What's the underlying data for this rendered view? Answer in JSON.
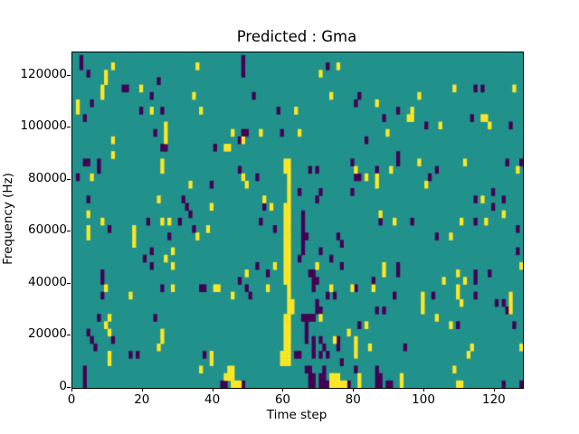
{
  "figure": {
    "title": "Predicted : Gma",
    "xlabel": "Time step",
    "ylabel": "Frequency (Hz)"
  },
  "chart_data": {
    "type": "heatmap",
    "title": "Predicted : Gma",
    "xlabel": "Time step",
    "ylabel": "Frequency (Hz)",
    "xlim": [
      0,
      128
    ],
    "ylim": [
      0,
      129000
    ],
    "x_ticks": [
      0,
      20,
      40,
      60,
      80,
      100,
      120
    ],
    "y_ticks": [
      0,
      20000,
      40000,
      60000,
      80000,
      100000,
      120000
    ],
    "grid": {
      "cols": 128,
      "rows": 45,
      "rows_visible": 45.35
    },
    "legend": "none",
    "colors": {
      "background_value": "#21918c",
      "high_value": "#fde725",
      "low_value": "#440154",
      "spine": "#000000",
      "text": "#000000"
    },
    "cells": {
      "yellow": [
        [
          11,
          43
        ],
        [
          35,
          43
        ],
        [
          75,
          43
        ],
        [
          70,
          42
        ],
        [
          9,
          41
        ],
        [
          9,
          42
        ],
        [
          8,
          39
        ],
        [
          8,
          40
        ],
        [
          19,
          40
        ],
        [
          34,
          39
        ],
        [
          73,
          39
        ],
        [
          98,
          39
        ],
        [
          108,
          40
        ],
        [
          125,
          40
        ],
        [
          1,
          37
        ],
        [
          1,
          38
        ],
        [
          22,
          37
        ],
        [
          36,
          37
        ],
        [
          63,
          37
        ],
        [
          86,
          38
        ],
        [
          86,
          27
        ],
        [
          96,
          36
        ],
        [
          96,
          37
        ],
        [
          95,
          36
        ],
        [
          116,
          36
        ],
        [
          117,
          36
        ],
        [
          118,
          35
        ],
        [
          104,
          35
        ],
        [
          26,
          33
        ],
        [
          26,
          34
        ],
        [
          26,
          35
        ],
        [
          11,
          33
        ],
        [
          45,
          34
        ],
        [
          53,
          34
        ],
        [
          64,
          34
        ],
        [
          48,
          33
        ],
        [
          89,
          34
        ],
        [
          11,
          31
        ],
        [
          43,
          32
        ],
        [
          44,
          32
        ],
        [
          25,
          29
        ],
        [
          25,
          30
        ],
        [
          90,
          29
        ],
        [
          126,
          29
        ],
        [
          80,
          29
        ],
        [
          98,
          30
        ],
        [
          111,
          30
        ],
        [
          5,
          28
        ],
        [
          48,
          28
        ],
        [
          83,
          28
        ],
        [
          86,
          28
        ],
        [
          33,
          27
        ],
        [
          49,
          27
        ],
        [
          100,
          27
        ],
        [
          24,
          25
        ],
        [
          54,
          25
        ],
        [
          116,
          25
        ],
        [
          39,
          24
        ],
        [
          56,
          24
        ],
        [
          122,
          23
        ],
        [
          87,
          23
        ],
        [
          4,
          23
        ],
        [
          8,
          22
        ],
        [
          25,
          22
        ],
        [
          27,
          22
        ],
        [
          91,
          22
        ],
        [
          110,
          22
        ],
        [
          117,
          22
        ],
        [
          4,
          20
        ],
        [
          4,
          21
        ],
        [
          17,
          19
        ],
        [
          17,
          20
        ],
        [
          17,
          21
        ],
        [
          35,
          20
        ],
        [
          38,
          21
        ],
        [
          107,
          20
        ],
        [
          28,
          18
        ],
        [
          26,
          17
        ],
        [
          28,
          16
        ],
        [
          69,
          16
        ],
        [
          57,
          16
        ],
        [
          88,
          15
        ],
        [
          88,
          16
        ],
        [
          109,
          15
        ],
        [
          127,
          16
        ],
        [
          49,
          15
        ],
        [
          9,
          13
        ],
        [
          28,
          13
        ],
        [
          40,
          13
        ],
        [
          41,
          13
        ],
        [
          55,
          13
        ],
        [
          73,
          13
        ],
        [
          79,
          13
        ],
        [
          85,
          13
        ],
        [
          45,
          12
        ],
        [
          16,
          12
        ],
        [
          105,
          14
        ],
        [
          111,
          14
        ],
        [
          109,
          12
        ],
        [
          109,
          13
        ],
        [
          110,
          11
        ],
        [
          99,
          10
        ],
        [
          99,
          11
        ],
        [
          99,
          12
        ],
        [
          124,
          10
        ],
        [
          124,
          11
        ],
        [
          124,
          12
        ],
        [
          10,
          9
        ],
        [
          9,
          8
        ],
        [
          10,
          7
        ],
        [
          70,
          9
        ],
        [
          78,
          7
        ],
        [
          83,
          8
        ],
        [
          103,
          9
        ],
        [
          107,
          8
        ],
        [
          25,
          6
        ],
        [
          25,
          7
        ],
        [
          24,
          5
        ],
        [
          74,
          6
        ],
        [
          80,
          4
        ],
        [
          80,
          5
        ],
        [
          80,
          6
        ],
        [
          84,
          5
        ],
        [
          113,
          5
        ],
        [
          127,
          5
        ],
        [
          10,
          3
        ],
        [
          10,
          4
        ],
        [
          39,
          3
        ],
        [
          39,
          4
        ],
        [
          36,
          2
        ],
        [
          112,
          4
        ],
        [
          108,
          2
        ],
        [
          43,
          1
        ],
        [
          44,
          1
        ],
        [
          45,
          1
        ],
        [
          44,
          2
        ],
        [
          45,
          2
        ],
        [
          45,
          0
        ],
        [
          46,
          0
        ],
        [
          47,
          0
        ],
        [
          73,
          0
        ],
        [
          74,
          0
        ],
        [
          75,
          0
        ],
        [
          76,
          0
        ],
        [
          77,
          0
        ],
        [
          73,
          1
        ],
        [
          74,
          1
        ],
        [
          75,
          1
        ],
        [
          81,
          0
        ],
        [
          81,
          1
        ],
        [
          93,
          0
        ],
        [
          93,
          1
        ],
        [
          109,
          0
        ],
        [
          110,
          0
        ],
        [
          59,
          3
        ],
        [
          59,
          4
        ],
        [
          60,
          3
        ],
        [
          60,
          4
        ],
        [
          60,
          5
        ],
        [
          60,
          6
        ],
        [
          60,
          7
        ],
        [
          60,
          8
        ],
        [
          60,
          9
        ],
        [
          60,
          14
        ],
        [
          60,
          15
        ],
        [
          60,
          16
        ],
        [
          60,
          17
        ],
        [
          60,
          18
        ],
        [
          60,
          19
        ],
        [
          60,
          20
        ],
        [
          60,
          21
        ],
        [
          60,
          22
        ],
        [
          60,
          23
        ],
        [
          60,
          24
        ],
        [
          60,
          29
        ],
        [
          60,
          30
        ],
        [
          61,
          3
        ],
        [
          61,
          4
        ],
        [
          61,
          5
        ],
        [
          61,
          6
        ],
        [
          61,
          7
        ],
        [
          61,
          8
        ],
        [
          61,
          9
        ],
        [
          61,
          10
        ],
        [
          61,
          11
        ],
        [
          61,
          12
        ],
        [
          61,
          13
        ],
        [
          61,
          14
        ],
        [
          61,
          15
        ],
        [
          61,
          16
        ],
        [
          61,
          17
        ],
        [
          61,
          18
        ],
        [
          61,
          19
        ],
        [
          61,
          20
        ],
        [
          61,
          21
        ],
        [
          61,
          22
        ],
        [
          61,
          23
        ],
        [
          61,
          24
        ],
        [
          61,
          25
        ],
        [
          61,
          26
        ],
        [
          61,
          27
        ],
        [
          61,
          28
        ],
        [
          61,
          29
        ],
        [
          61,
          30
        ],
        [
          62,
          10
        ],
        [
          62,
          11
        ]
      ],
      "dark": [
        [
          2,
          43
        ],
        [
          2,
          44
        ],
        [
          48,
          42
        ],
        [
          48,
          43
        ],
        [
          48,
          44
        ],
        [
          72,
          43
        ],
        [
          4,
          42
        ],
        [
          24,
          41
        ],
        [
          14,
          40
        ],
        [
          15,
          40
        ],
        [
          114,
          40
        ],
        [
          116,
          40
        ],
        [
          22,
          39
        ],
        [
          51,
          39
        ],
        [
          81,
          39
        ],
        [
          5,
          38
        ],
        [
          80,
          38
        ],
        [
          19,
          37
        ],
        [
          25,
          37
        ],
        [
          58,
          37
        ],
        [
          92,
          37
        ],
        [
          113,
          36
        ],
        [
          88,
          36
        ],
        [
          3,
          36
        ],
        [
          23,
          34
        ],
        [
          48,
          34
        ],
        [
          49,
          34
        ],
        [
          59,
          34
        ],
        [
          100,
          35
        ],
        [
          124,
          35
        ],
        [
          47,
          33
        ],
        [
          83,
          33
        ],
        [
          26,
          32
        ],
        [
          40,
          32
        ],
        [
          25,
          32
        ],
        [
          3,
          30
        ],
        [
          4,
          30
        ],
        [
          7,
          30
        ],
        [
          7,
          29
        ],
        [
          47,
          29
        ],
        [
          67,
          29
        ],
        [
          69,
          29
        ],
        [
          79,
          30
        ],
        [
          86,
          29
        ],
        [
          103,
          29
        ],
        [
          92,
          30
        ],
        [
          92,
          31
        ],
        [
          123,
          30
        ],
        [
          127,
          30
        ],
        [
          1,
          28
        ],
        [
          52,
          28
        ],
        [
          80,
          28
        ],
        [
          81,
          28
        ],
        [
          101,
          28
        ],
        [
          39,
          27
        ],
        [
          4,
          25
        ],
        [
          31,
          25
        ],
        [
          69,
          25
        ],
        [
          114,
          25
        ],
        [
          122,
          25
        ],
        [
          64,
          26
        ],
        [
          70,
          26
        ],
        [
          79,
          26
        ],
        [
          119,
          26
        ],
        [
          32,
          24
        ],
        [
          54,
          24
        ],
        [
          119,
          24
        ],
        [
          33,
          23
        ],
        [
          21,
          22
        ],
        [
          30,
          22
        ],
        [
          53,
          22
        ],
        [
          87,
          22
        ],
        [
          96,
          22
        ],
        [
          114,
          22
        ],
        [
          34,
          21
        ],
        [
          10,
          21
        ],
        [
          57,
          21
        ],
        [
          126,
          21
        ],
        [
          27,
          20
        ],
        [
          65,
          18
        ],
        [
          65,
          19
        ],
        [
          65,
          20
        ],
        [
          65,
          21
        ],
        [
          65,
          22
        ],
        [
          65,
          23
        ],
        [
          66,
          20
        ],
        [
          70,
          18
        ],
        [
          75,
          20
        ],
        [
          76,
          19
        ],
        [
          103,
          20
        ],
        [
          126,
          18
        ],
        [
          22,
          18
        ],
        [
          20,
          17
        ],
        [
          64,
          17
        ],
        [
          73,
          17
        ],
        [
          22,
          16
        ],
        [
          76,
          16
        ],
        [
          52,
          16
        ],
        [
          8,
          15
        ],
        [
          67,
          15
        ],
        [
          68,
          15
        ],
        [
          55,
          15
        ],
        [
          92,
          15
        ],
        [
          92,
          16
        ],
        [
          114,
          15
        ],
        [
          118,
          15
        ],
        [
          8,
          14
        ],
        [
          47,
          14
        ],
        [
          68,
          14
        ],
        [
          69,
          14
        ],
        [
          85,
          14
        ],
        [
          114,
          14
        ],
        [
          25,
          13
        ],
        [
          36,
          13
        ],
        [
          37,
          13
        ],
        [
          49,
          13
        ],
        [
          68,
          13
        ],
        [
          80,
          13
        ],
        [
          8,
          12
        ],
        [
          50,
          12
        ],
        [
          72,
          12
        ],
        [
          74,
          12
        ],
        [
          91,
          12
        ],
        [
          102,
          12
        ],
        [
          114,
          12
        ],
        [
          120,
          11
        ],
        [
          122,
          11
        ],
        [
          69,
          11
        ],
        [
          69,
          10
        ],
        [
          70,
          10
        ],
        [
          86,
          10
        ],
        [
          88,
          10
        ],
        [
          123,
          10
        ],
        [
          7,
          9
        ],
        [
          23,
          9
        ],
        [
          65,
          9
        ],
        [
          66,
          9
        ],
        [
          67,
          9
        ],
        [
          68,
          9
        ],
        [
          81,
          8
        ],
        [
          109,
          8
        ],
        [
          125,
          8
        ],
        [
          4,
          7
        ],
        [
          66,
          6
        ],
        [
          66,
          7
        ],
        [
          66,
          8
        ],
        [
          5,
          6
        ],
        [
          11,
          6
        ],
        [
          70,
          6
        ],
        [
          68,
          6
        ],
        [
          6,
          5
        ],
        [
          71,
          5
        ],
        [
          75,
          5
        ],
        [
          75,
          6
        ],
        [
          68,
          5
        ],
        [
          94,
          5
        ],
        [
          16,
          4
        ],
        [
          18,
          4
        ],
        [
          37,
          4
        ],
        [
          63,
          4
        ],
        [
          64,
          4
        ],
        [
          70,
          4
        ],
        [
          72,
          4
        ],
        [
          68,
          4
        ],
        [
          76,
          3
        ],
        [
          3,
          2
        ],
        [
          66,
          2
        ],
        [
          67,
          2
        ],
        [
          71,
          2
        ],
        [
          80,
          2
        ],
        [
          86,
          2
        ],
        [
          3,
          1
        ],
        [
          67,
          1
        ],
        [
          68,
          1
        ],
        [
          70,
          1
        ],
        [
          71,
          1
        ],
        [
          86,
          1
        ],
        [
          87,
          1
        ],
        [
          3,
          0
        ],
        [
          42,
          0
        ],
        [
          43,
          0
        ],
        [
          48,
          0
        ],
        [
          67,
          0
        ],
        [
          68,
          0
        ],
        [
          70,
          0
        ],
        [
          71,
          0
        ],
        [
          72,
          0
        ],
        [
          78,
          0
        ],
        [
          86,
          0
        ],
        [
          87,
          0
        ],
        [
          89,
          0
        ],
        [
          90,
          0
        ],
        [
          122,
          0
        ],
        [
          127,
          0
        ]
      ]
    }
  }
}
